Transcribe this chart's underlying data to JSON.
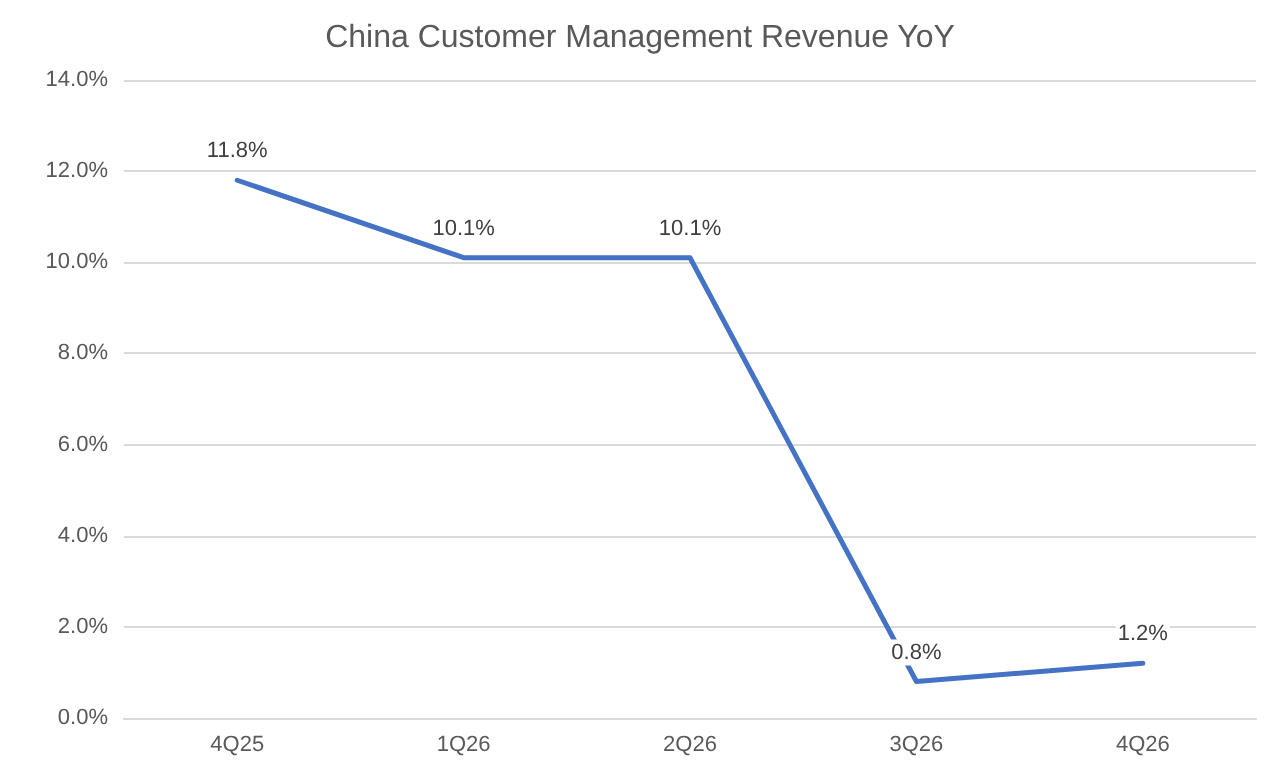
{
  "chart_data": {
    "type": "line",
    "title": "China Customer Management Revenue YoY",
    "categories": [
      "4Q25",
      "1Q26",
      "2Q26",
      "3Q26",
      "4Q26"
    ],
    "values": [
      11.8,
      10.1,
      10.1,
      0.8,
      1.2
    ],
    "value_labels": [
      "11.8%",
      "10.1%",
      "10.1%",
      "0.8%",
      "1.2%"
    ],
    "color": "#4472c4",
    "ylim": [
      0,
      14
    ],
    "yticks": [
      {
        "value": 0,
        "label": "0.0%"
      },
      {
        "value": 2,
        "label": "2.0%"
      },
      {
        "value": 4,
        "label": "4.0%"
      },
      {
        "value": 6,
        "label": "6.0%"
      },
      {
        "value": 8,
        "label": "8.0%"
      },
      {
        "value": 10,
        "label": "10.0%"
      },
      {
        "value": 12,
        "label": "12.0%"
      },
      {
        "value": 14,
        "label": "14.0%"
      }
    ],
    "grid": "y",
    "marker": "none",
    "line_style": "solid"
  }
}
